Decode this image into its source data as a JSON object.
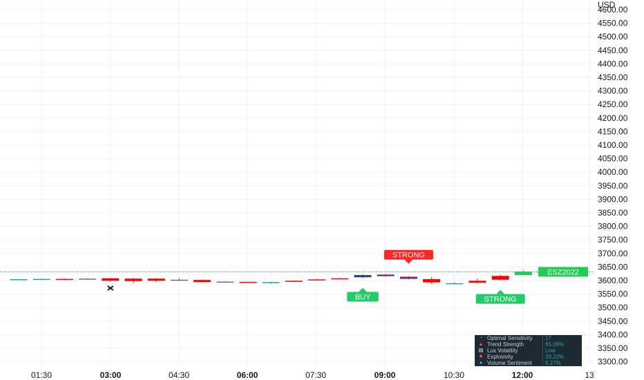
{
  "chart_data": {
    "type": "candlestick",
    "currency_label": "USD",
    "symbol": "ESZ2022",
    "y_ticks": [
      "4600.00",
      "4550.00",
      "4500.00",
      "4450.00",
      "4400.00",
      "4350.00",
      "4300.00",
      "4250.00",
      "4200.00",
      "4150.00",
      "4100.00",
      "4050.00",
      "4000.00",
      "3950.00",
      "3900.00",
      "3850.00",
      "3800.00",
      "3750.00",
      "3700.00",
      "3650.00",
      "3600.00",
      "3550.00",
      "3500.00",
      "3450.00",
      "3400.00",
      "3350.00",
      "3300.00"
    ],
    "ylim": [
      3280,
      4610
    ],
    "x_ticks": [
      {
        "label": "01:30",
        "bold": false
      },
      {
        "label": "03:00",
        "bold": true
      },
      {
        "label": "04:30",
        "bold": false
      },
      {
        "label": "06:00",
        "bold": true
      },
      {
        "label": "07:30",
        "bold": false
      },
      {
        "label": "09:00",
        "bold": true
      },
      {
        "label": "10:30",
        "bold": false
      },
      {
        "label": "12:00",
        "bold": true
      },
      {
        "label": "13",
        "bold": false
      }
    ],
    "current_price_level": 3632,
    "candles": [
      {
        "o": 3604,
        "h": 3606,
        "l": 3603,
        "c": 3605,
        "color": "#26a69a"
      },
      {
        "o": 3605,
        "h": 3607,
        "l": 3604,
        "c": 3606,
        "color": "#26a69a"
      },
      {
        "o": 3606,
        "h": 3608,
        "l": 3605,
        "c": 3606,
        "color": "#ff0000"
      },
      {
        "o": 3607,
        "h": 3609,
        "l": 3604,
        "c": 3605,
        "color": "#6c6c6c"
      },
      {
        "o": 3608,
        "h": 3610,
        "l": 3596,
        "c": 3599,
        "color": "#ff0000"
      },
      {
        "o": 3607,
        "h": 3609,
        "l": 3590,
        "c": 3598,
        "color": "#ff0000"
      },
      {
        "o": 3607,
        "h": 3609,
        "l": 3594,
        "c": 3599,
        "color": "#ff0000"
      },
      {
        "o": 3603,
        "h": 3610,
        "l": 3598,
        "c": 3600,
        "color": "#6c6c6c"
      },
      {
        "o": 3602,
        "h": 3604,
        "l": 3593,
        "c": 3594,
        "color": "#ff0000"
      },
      {
        "o": 3596,
        "h": 3597,
        "l": 3592,
        "c": 3594,
        "color": "#6c6c6c"
      },
      {
        "o": 3595,
        "h": 3596,
        "l": 3591,
        "c": 3593,
        "color": "#ff0000"
      },
      {
        "o": 3593,
        "h": 3596,
        "l": 3588,
        "c": 3594,
        "color": "#26a69a"
      },
      {
        "o": 3597,
        "h": 3600,
        "l": 3594,
        "c": 3599,
        "color": "#ff0000"
      },
      {
        "o": 3602,
        "h": 3606,
        "l": 3600,
        "c": 3604,
        "color": "#ff0000"
      },
      {
        "o": 3606,
        "h": 3610,
        "l": 3604,
        "c": 3608,
        "color": "#ff0000"
      },
      {
        "o": 3612,
        "h": 3622,
        "l": 3609,
        "c": 3620,
        "color": "#2e3a8c"
      },
      {
        "o": 3616,
        "h": 3624,
        "l": 3614,
        "c": 3622,
        "color": "#7b2d6e"
      },
      {
        "o": 3614,
        "h": 3616,
        "l": 3604,
        "c": 3606,
        "color": "#7b2d6e"
      },
      {
        "o": 3605,
        "h": 3612,
        "l": 3588,
        "c": 3593,
        "color": "#ff0000"
      },
      {
        "o": 3590,
        "h": 3594,
        "l": 3585,
        "c": 3590,
        "color": "#26a69a"
      },
      {
        "o": 3599,
        "h": 3607,
        "l": 3589,
        "c": 3592,
        "color": "#ff0000"
      },
      {
        "o": 3603,
        "h": 3620,
        "l": 3601,
        "c": 3617,
        "color": "#ff0000"
      },
      {
        "o": 3620,
        "h": 3640,
        "l": 3618,
        "c": 3633,
        "color": "#22cc55"
      },
      {
        "o": 3630,
        "h": 3640,
        "l": 3625,
        "c": 3632,
        "color": "#22cc55"
      }
    ],
    "signals": [
      {
        "label": "STRONG",
        "candle": 17,
        "position": "above",
        "color": "#ff2626"
      },
      {
        "label": "BUY",
        "candle": 15,
        "position": "below",
        "color": "#22cc66"
      },
      {
        "label": "STRONG",
        "candle": 21,
        "position": "below",
        "color": "#22cc66"
      }
    ],
    "cross_marker_candle": 4
  },
  "panel": {
    "rows": [
      {
        "icon": "gauge-icon",
        "glyph": "◔",
        "label": "Optimal Sensitivity",
        "value": "17"
      },
      {
        "icon": "flame-icon",
        "glyph": "▲",
        "label": "Trend Strength",
        "value": "65.06%"
      },
      {
        "icon": "chart-icon",
        "glyph": "▤",
        "label": "Lux Volatility",
        "value": "Low"
      },
      {
        "icon": "explosion-icon",
        "glyph": "✸",
        "label": "Explosivity",
        "value": "39.22%"
      },
      {
        "icon": "drop-icon",
        "glyph": "●",
        "label": "Volume Sentiment",
        "value": "9.27%"
      }
    ]
  }
}
